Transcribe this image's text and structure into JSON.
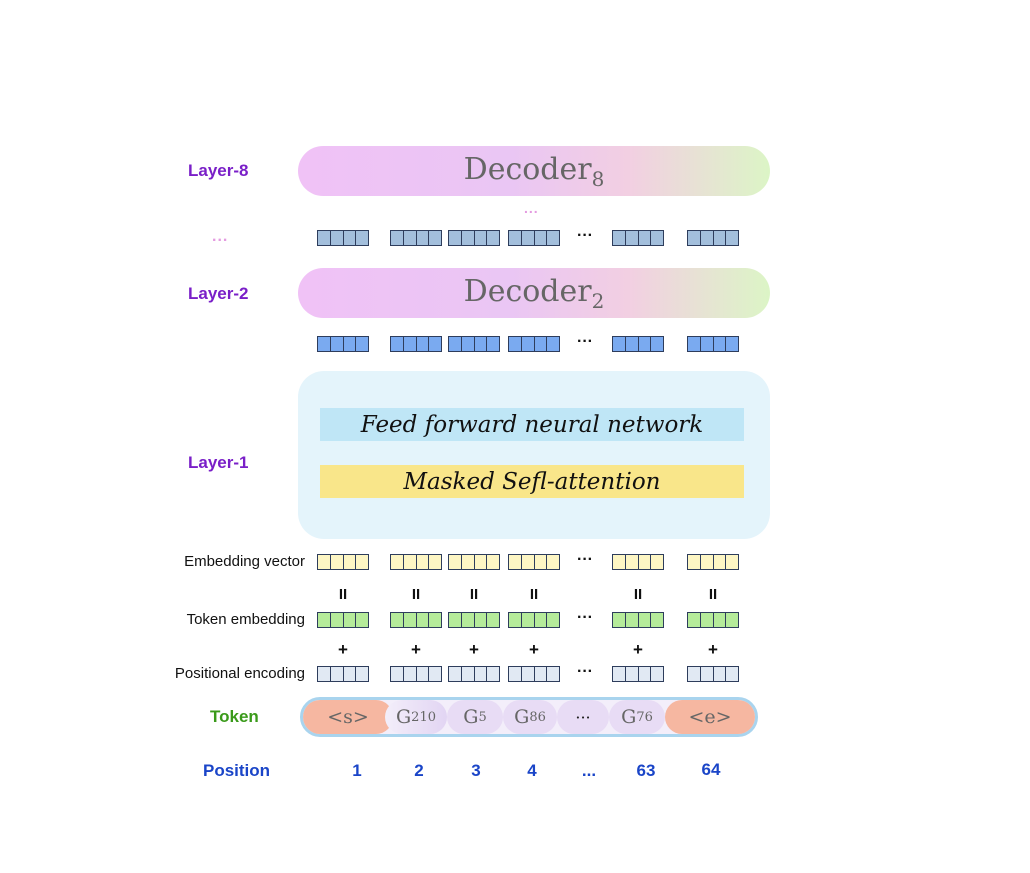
{
  "labels": {
    "layer8": "Layer-8",
    "layer2": "Layer-2",
    "layer1": "Layer-1",
    "layers_ellipsis": "...",
    "embedding_vector": "Embedding vector",
    "token_embedding": "Token embedding",
    "positional_encoding": "Positional encoding",
    "token": "Token",
    "position": "Position"
  },
  "decoders": {
    "top": {
      "name": "Decoder",
      "sub": "8"
    },
    "mid": {
      "name": "Decoder",
      "sub": "2"
    },
    "dots_above_vectors": "..."
  },
  "layer1": {
    "ffn": "Feed forward neural network",
    "msa": "Masked Sefl-attention"
  },
  "operators": {
    "equals": "II",
    "plus": "+"
  },
  "column_ellipsis": "···",
  "tokens": [
    {
      "main": "<s>",
      "sub": ""
    },
    {
      "main": "G",
      "sub": "210"
    },
    {
      "main": "G",
      "sub": "5"
    },
    {
      "main": "G",
      "sub": "86"
    },
    {
      "main": "···",
      "sub": ""
    },
    {
      "main": "G",
      "sub": "76"
    },
    {
      "main": "<e>",
      "sub": ""
    }
  ],
  "positions": [
    "1",
    "2",
    "3",
    "4",
    "...",
    "63",
    "64"
  ],
  "colors": {
    "layer_label": "#7a1fc8",
    "token_label": "#3a9a1a",
    "position_label": "#1a45c8",
    "vec_layer8": "#a3bfdc",
    "vec_layer2": "#7aaaf0",
    "vec_embedding": "#fdf6c4",
    "vec_token": "#b5eb9a",
    "vec_positional": "#e1e9f3"
  }
}
